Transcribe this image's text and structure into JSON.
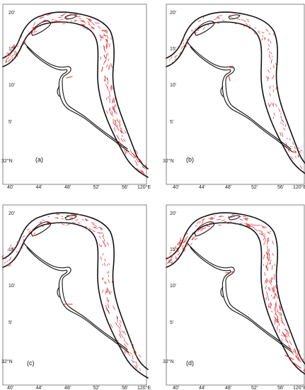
{
  "panels": [
    {
      "label": "(a)"
    },
    {
      "label": "(b)"
    },
    {
      "label": "(c)"
    },
    {
      "label": "(d)"
    }
  ],
  "lat_ticks": [
    "20'",
    "15'",
    "10'",
    "5'",
    "32°N"
  ],
  "lon_ticks": [
    "40'",
    "44'",
    "48'",
    "52'",
    "56'",
    "120°E"
  ],
  "colors": {
    "vector": "#d9262b",
    "river_bank": "#111111"
  }
}
